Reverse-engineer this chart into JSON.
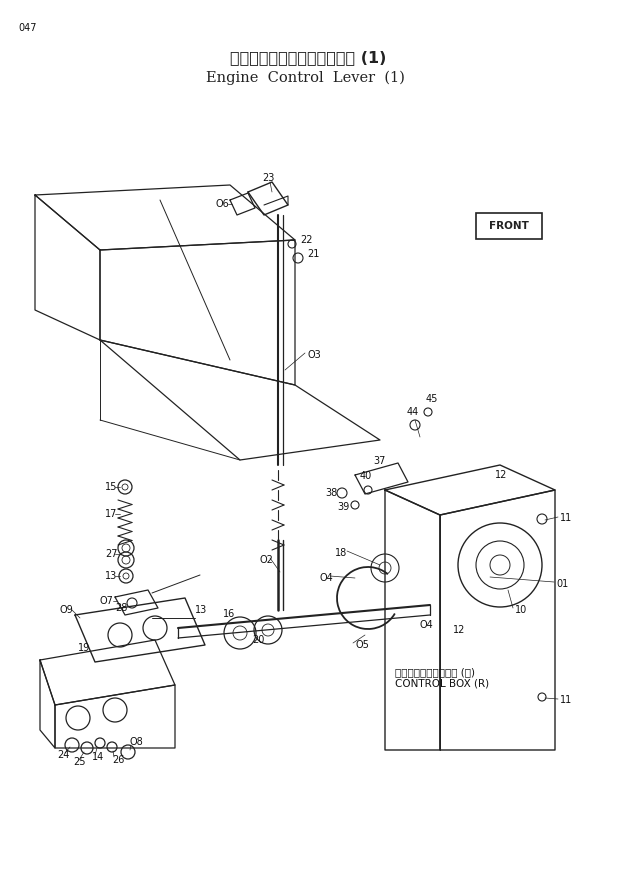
{
  "page_number": "047",
  "title_japanese": "エンジンコントロールレバー (1)",
  "title_english": "Engine  Control  Lever  (1)",
  "bg_color": "#ffffff",
  "line_color": "#222222",
  "label_color": "#111111",
  "front_label": "FRONT",
  "control_box_japanese": "コントロールボックス (右)",
  "control_box_english": "CONTROL BOX (R)"
}
